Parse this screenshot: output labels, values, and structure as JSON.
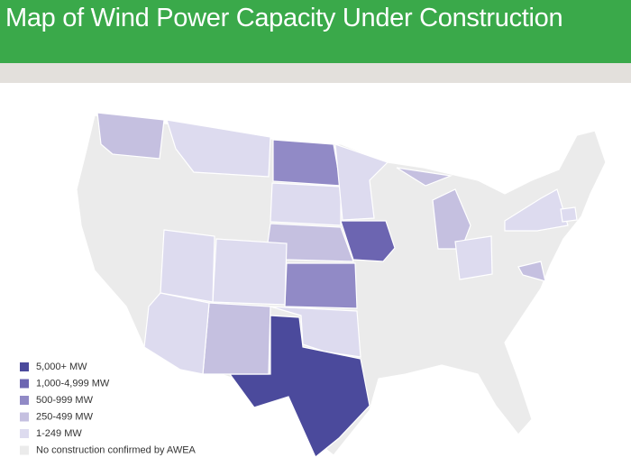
{
  "title": "Map of Wind Power Capacity Under Construction",
  "legend": [
    {
      "label": "5,000+ MW",
      "color": "#4b4a9c"
    },
    {
      "label": "1,000-4,999 MW",
      "color": "#6c65b1"
    },
    {
      "label": "500-999 MW",
      "color": "#918ac6"
    },
    {
      "label": "250-499 MW",
      "color": "#c5c0e0"
    },
    {
      "label": "1-249 MW",
      "color": "#dddbef"
    },
    {
      "label": "No construction confirmed by AWEA",
      "color": "#ebebeb"
    }
  ]
}
